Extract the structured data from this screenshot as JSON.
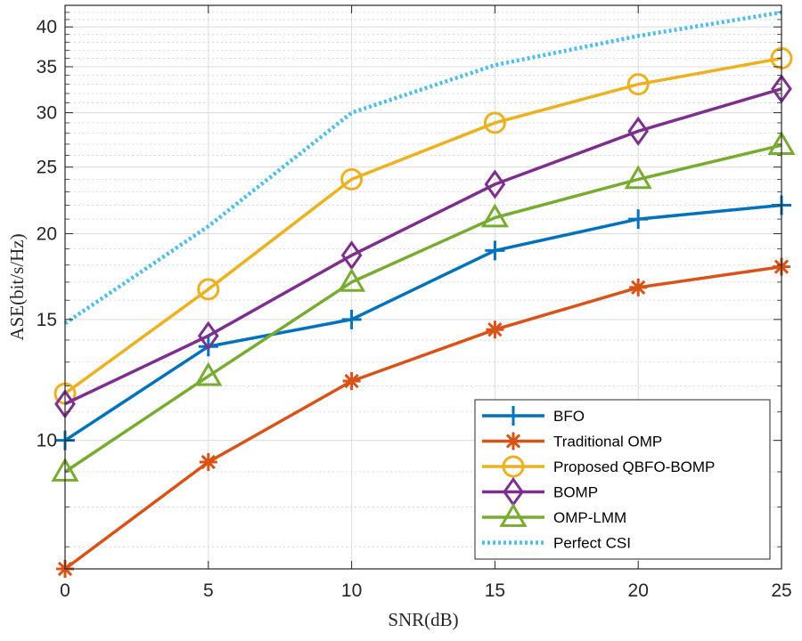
{
  "chart_data": {
    "type": "line",
    "title": "",
    "xlabel": "SNR(dB)",
    "ylabel": "ASE(bit/s/Hz)",
    "xscale": "linear",
    "yscale": "log",
    "xlim": [
      0,
      25
    ],
    "ylim": [
      6.5,
      43
    ],
    "grid": true,
    "legend_position": "bottom-right",
    "x": [
      0,
      5,
      10,
      15,
      20,
      25
    ],
    "xticks": [
      "0",
      "5",
      "10",
      "15",
      "20",
      "25"
    ],
    "yticks": [
      "10",
      "15",
      "20",
      "25",
      "30",
      "35",
      "40"
    ],
    "yticks_values": [
      10,
      15,
      20,
      25,
      30,
      35,
      40
    ],
    "y_minor_ticks": [
      7,
      8,
      9,
      11,
      12,
      13,
      14,
      16,
      17,
      18,
      19,
      21,
      22,
      23,
      24,
      26,
      27,
      28,
      29,
      31,
      32,
      33,
      34,
      36,
      37,
      38,
      39,
      41,
      42,
      43
    ],
    "series": [
      {
        "name": "BFO",
        "color": "#0072BD",
        "marker": "plus",
        "line": "solid",
        "values": [
          10.0,
          13.7,
          15.0,
          18.9,
          21.0,
          22.0
        ]
      },
      {
        "name": "Traditional OMP",
        "color": "#D95319",
        "marker": "asterisk",
        "line": "solid",
        "values": [
          6.5,
          9.3,
          12.2,
          14.5,
          16.7,
          17.9
        ]
      },
      {
        "name": "Proposed QBFO-BOMP",
        "color": "#EDB120",
        "marker": "circle",
        "line": "solid",
        "values": [
          11.7,
          16.6,
          24.0,
          29.0,
          33.0,
          36.0
        ]
      },
      {
        "name": "BOMP",
        "color": "#7E2F8E",
        "marker": "diamond",
        "line": "solid",
        "values": [
          11.3,
          14.2,
          18.6,
          23.6,
          28.2,
          32.5
        ]
      },
      {
        "name": "OMP-LMM",
        "color": "#77AC30",
        "marker": "triangle",
        "line": "solid",
        "values": [
          9.0,
          12.4,
          17.0,
          21.1,
          24.0,
          26.9
        ]
      },
      {
        "name": "Perfect CSI",
        "color": "#4DBEEE",
        "marker": "none",
        "line": "dotted",
        "values": [
          14.8,
          20.5,
          30.0,
          35.2,
          38.8,
          42.0
        ]
      }
    ]
  }
}
